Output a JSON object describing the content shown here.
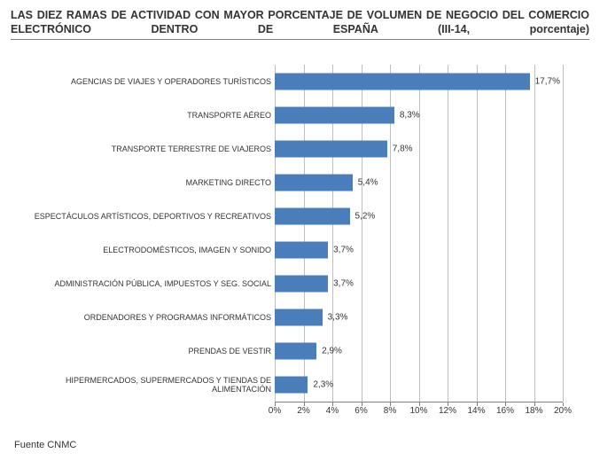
{
  "title": "LAS DIEZ RAMAS DE ACTIVIDAD CON MAYOR PORCENTAJE DE VOLUMEN DE NEGOCIO DEL COMERCIO ELECTRÓNICO DENTRO DE ESPAÑA (III-14, porcentaje)",
  "source": "Fuente CNMC",
  "chart": {
    "type": "bar-horizontal",
    "bar_color": "#4a7ebb",
    "grid_color": "#bfbfbf",
    "axis_color": "#808080",
    "background_color": "#ffffff",
    "label_fontsize": 9,
    "value_fontsize": 10,
    "tick_fontsize": 10,
    "xmin": 0,
    "xmax": 20,
    "xtick_step": 2,
    "xticks": [
      0,
      2,
      4,
      6,
      8,
      10,
      12,
      14,
      16,
      18,
      20
    ],
    "xtick_labels": [
      "0%",
      "2%",
      "4%",
      "6%",
      "8%",
      "10%",
      "12%",
      "14%",
      "16%",
      "18%",
      "20%"
    ],
    "categories": [
      "AGENCIAS DE VIAJES Y OPERADORES TURÍSTICOS",
      "TRANSPORTE AÉREO",
      "TRANSPORTE TERRESTRE DE VIAJEROS",
      "MARKETING DIRECTO",
      "ESPECTÁCULOS ARTÍSTICOS, DEPORTIVOS Y RECREATIVOS",
      "ELECTRODOMÉSTICOS,  IMAGEN Y SONIDO",
      "ADMINISTRACIÓN PÚBLICA, IMPUESTOS Y SEG. SOCIAL",
      "ORDENADORES Y PROGRAMAS INFORMÁTICOS",
      "PRENDAS DE VESTIR",
      "HIPERMERCADOS, SUPERMERCADOS Y TIENDAS DE ALIMENTACIÓN"
    ],
    "values": [
      17.7,
      8.3,
      7.8,
      5.4,
      5.2,
      3.7,
      3.7,
      3.3,
      2.9,
      2.3
    ],
    "value_labels": [
      "17,7%",
      "8,3%",
      "7,8%",
      "5,4%",
      "5,2%",
      "3,7%",
      "3,7%",
      "3,3%",
      "2,9%",
      "2,3%"
    ]
  }
}
